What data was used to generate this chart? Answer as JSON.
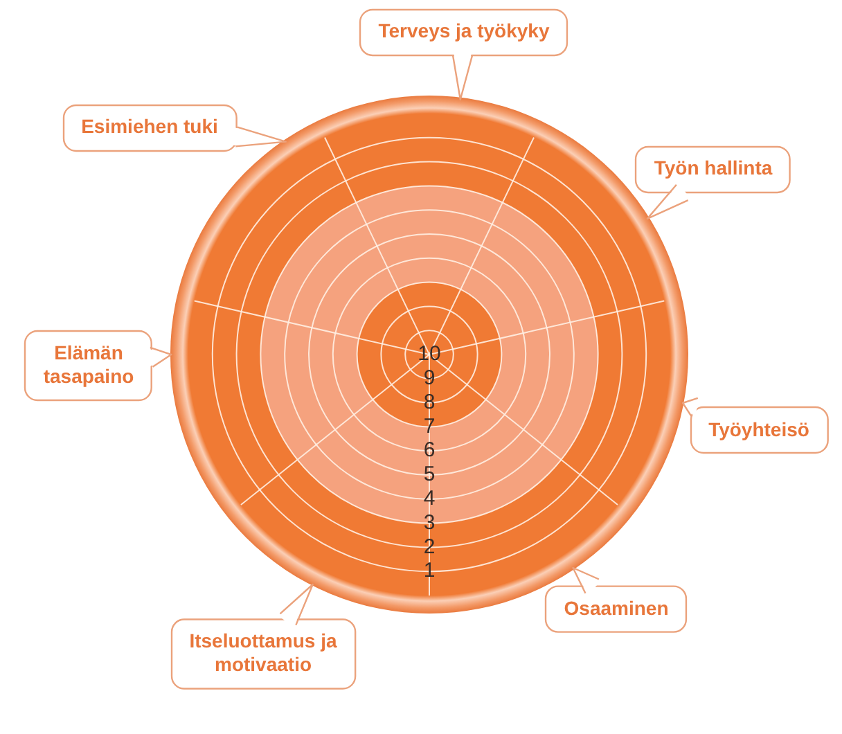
{
  "chart_data": {
    "type": "radar",
    "categories": [
      "Terveys ja työkyky",
      "Työn hallinta",
      "Työyhteisö",
      "Osaaminen",
      "Itseluottamus ja motivaatio",
      "Elämän tasapaino",
      "Esimiehen tuki"
    ],
    "ylim": [
      10,
      0
    ],
    "yticks": [
      1,
      2,
      3,
      4,
      5,
      6,
      7,
      8,
      9,
      10
    ],
    "grid": true
  }
}
